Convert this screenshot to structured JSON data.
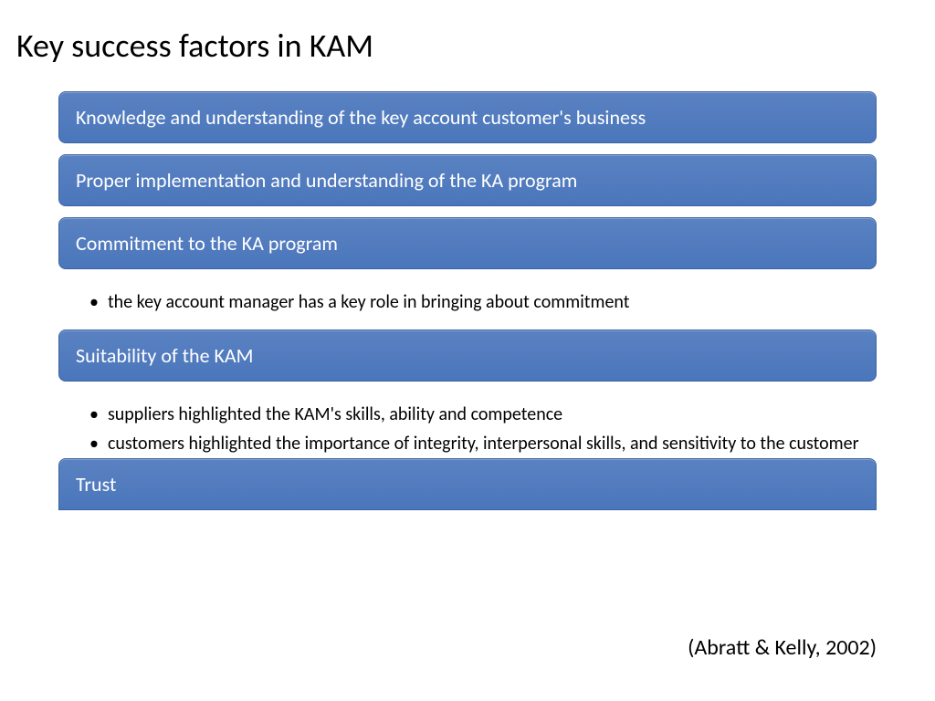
{
  "title": "Key success factors in KAM",
  "box_bg_top": "#5a82c2",
  "box_bg_bottom": "#4a76bb",
  "box_border": "#3d63a1",
  "text_white": "#ffffff",
  "text_black": "#000000",
  "factors": {
    "f1": {
      "label": "Knowledge and understanding of the key account customer's business"
    },
    "f2": {
      "label": "Proper implementation and understanding of the KA program"
    },
    "f3": {
      "label": "Commitment to the KA program",
      "b1": "the key account manager has a key role in bringing about commitment"
    },
    "f4": {
      "label": "Suitability of the KAM",
      "b1": "suppliers highlighted the KAM's skills, ability and competence",
      "b2": "customers highlighted the importance of integrity, interpersonal skills, and sensitivity to the customer"
    },
    "f5": {
      "label": "Trust"
    }
  },
  "citation": "(Abratt & Kelly, 2002)"
}
